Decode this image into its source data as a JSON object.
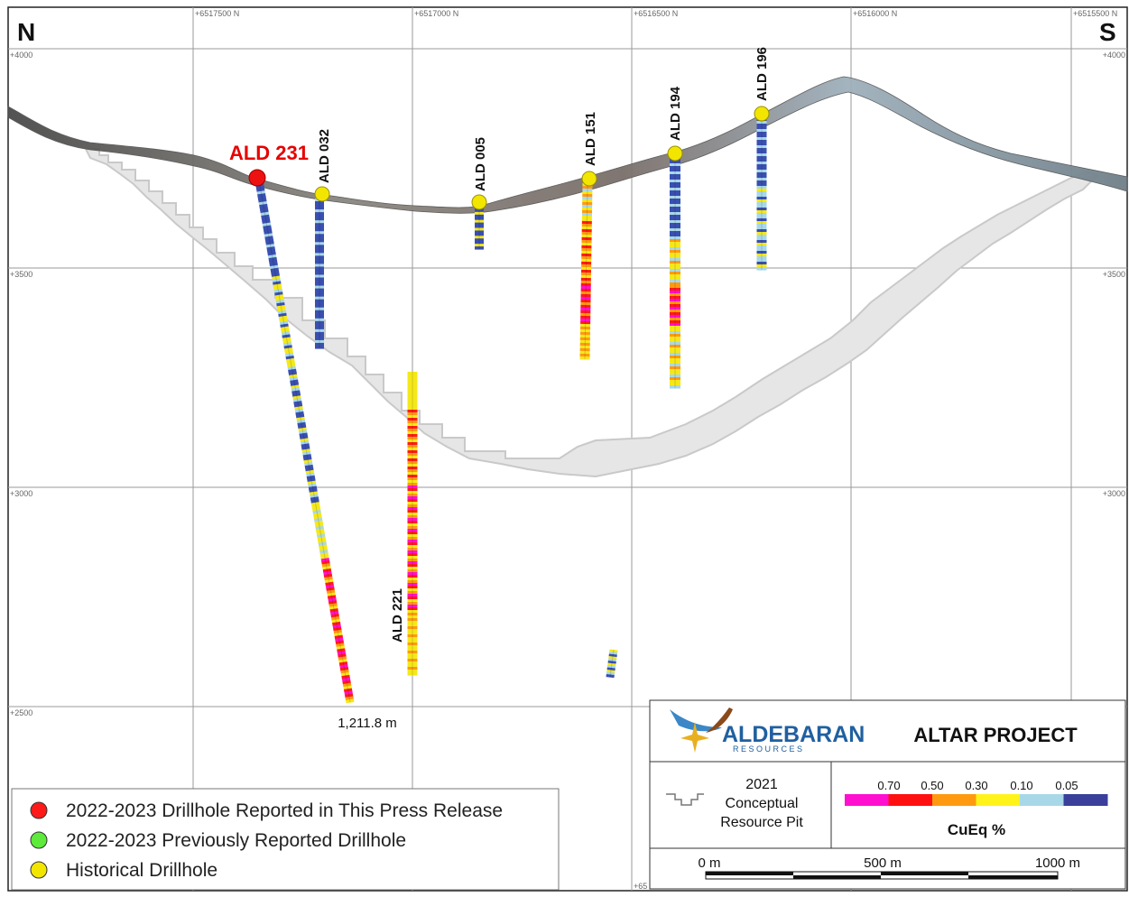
{
  "compass": {
    "north": "N",
    "south": "S"
  },
  "eastings": [
    "+6517500 N",
    "+6517000 N",
    "+6516500 N",
    "+6516000 N",
    "+6515500 N",
    "+65"
  ],
  "elevations": [
    "+4000",
    "+3500",
    "+3000",
    "+2500"
  ],
  "drillholes": {
    "ald231": "ALD 231",
    "ald032": "ALD 032",
    "ald005": "ALD 005",
    "ald151": "ALD 151",
    "ald194": "ALD 194",
    "ald196": "ALD 196",
    "ald221": "ALD 221"
  },
  "depth_label": "1,211.8 m",
  "legend": {
    "items": [
      {
        "label": "2022-2023 Drillhole Reported in This Press Release",
        "color": "#ff1a1a"
      },
      {
        "label": "2022-2023 Previously Reported Drillhole",
        "color": "#5dea3a"
      },
      {
        "label": "Historical Drillhole",
        "color": "#f2e600"
      }
    ]
  },
  "title_block": {
    "company": "ALDEBARAN",
    "company_sub": "R E S O U R C E S",
    "project": "ALTAR PROJECT",
    "pit_label_1": "2021",
    "pit_label_2": "Conceptual",
    "pit_label_3": "Resource Pit",
    "grade_title": "CuEq %",
    "grade_thresholds": [
      "0.70",
      "0.50",
      "0.30",
      "0.10",
      "0.05"
    ],
    "grade_colors": [
      "#ff10d0",
      "#ff1010",
      "#ff9a10",
      "#fff31a",
      "#a8d8e8",
      "#3a3f9a"
    ],
    "scale": [
      "0 m",
      "500 m",
      "1000 m"
    ]
  }
}
